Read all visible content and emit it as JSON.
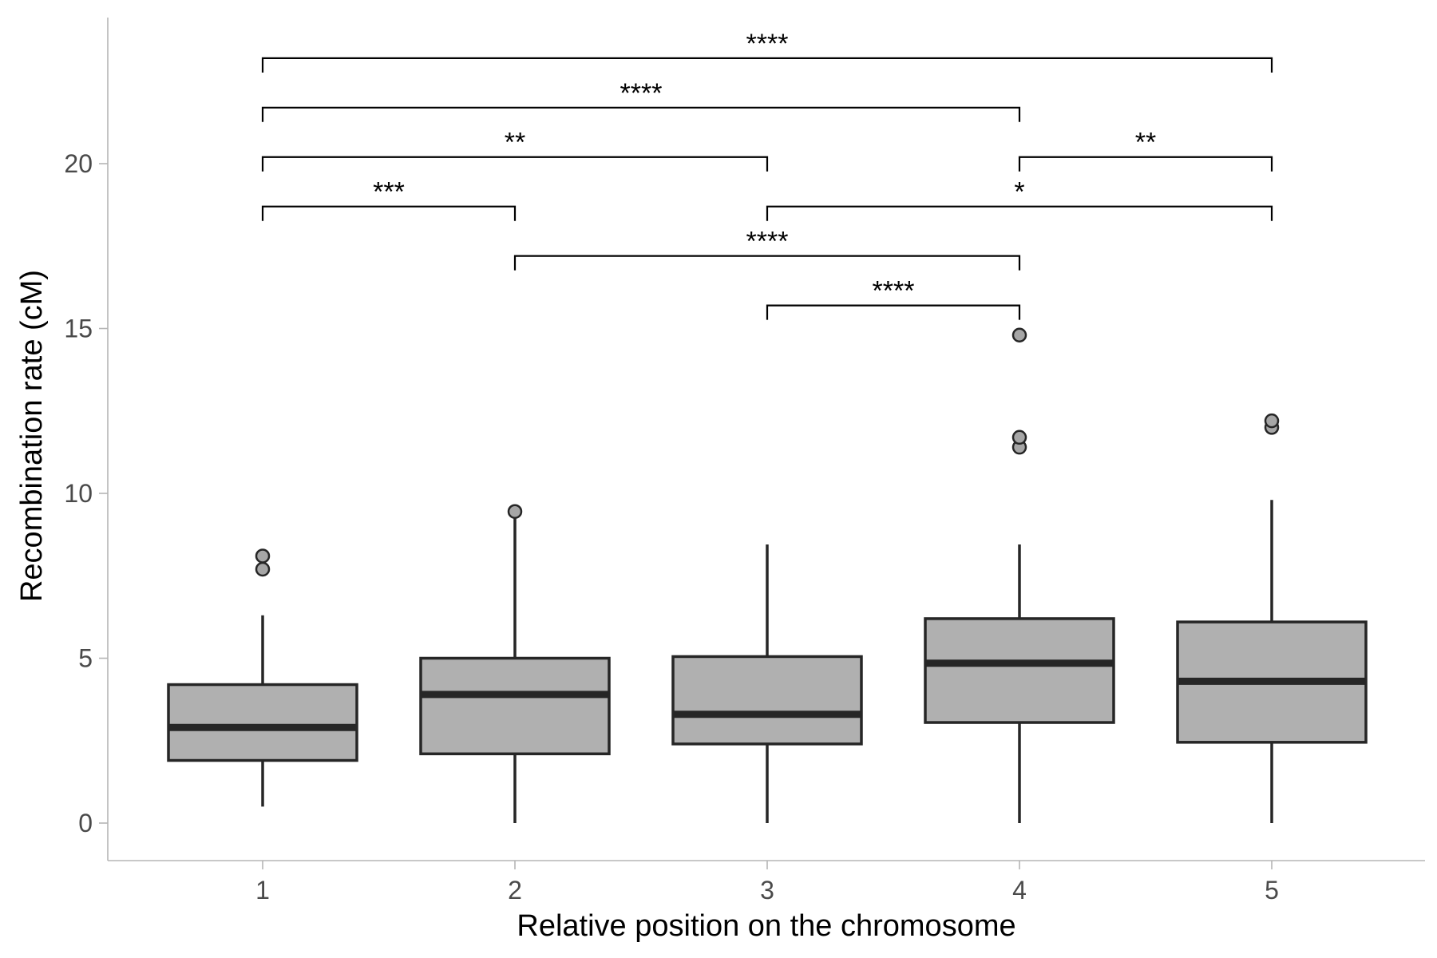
{
  "chart_data": {
    "type": "box",
    "title": "",
    "xlabel": "Relative position on the chromosome",
    "ylabel": "Recombination rate (cM)",
    "categories": [
      "1",
      "2",
      "3",
      "4",
      "5"
    ],
    "ylim": [
      -1.2,
      24
    ],
    "yticks": [
      0,
      5,
      10,
      15,
      20
    ],
    "grid": false,
    "legend": "none",
    "colors": {
      "box_fill": "#b0b0b0",
      "box_stroke": "#262626",
      "outlier_fill": "#a6a6a6"
    },
    "boxes": [
      {
        "category": "1",
        "whisker_low": 0.5,
        "q1": 1.9,
        "median": 2.9,
        "q3": 4.2,
        "whisker_high": 6.3,
        "outliers": [
          7.7,
          8.1
        ]
      },
      {
        "category": "2",
        "whisker_low": 0.0,
        "q1": 2.1,
        "median": 3.9,
        "q3": 5.0,
        "whisker_high": 9.4,
        "outliers": [
          9.45
        ]
      },
      {
        "category": "3",
        "whisker_low": 0.0,
        "q1": 2.4,
        "median": 3.3,
        "q3": 5.05,
        "whisker_high": 8.45,
        "outliers": []
      },
      {
        "category": "4",
        "whisker_low": 0.0,
        "q1": 3.05,
        "median": 4.85,
        "q3": 6.2,
        "whisker_high": 8.45,
        "outliers": [
          11.4,
          11.7,
          14.8
        ]
      },
      {
        "category": "5",
        "whisker_low": 0.0,
        "q1": 2.45,
        "median": 4.3,
        "q3": 6.1,
        "whisker_high": 9.8,
        "outliers": [
          12.0,
          12.2
        ]
      }
    ],
    "comparisons": [
      {
        "from": "1",
        "to": "5",
        "y": 23.2,
        "label": "****"
      },
      {
        "from": "1",
        "to": "4",
        "y": 21.7,
        "label": "****"
      },
      {
        "from": "1",
        "to": "3",
        "y": 20.2,
        "label": "**"
      },
      {
        "from": "4",
        "to": "5",
        "y": 20.2,
        "label": "**"
      },
      {
        "from": "1",
        "to": "2",
        "y": 18.7,
        "label": "***"
      },
      {
        "from": "3",
        "to": "5",
        "y": 18.7,
        "label": "*"
      },
      {
        "from": "2",
        "to": "4",
        "y": 17.2,
        "label": "****"
      },
      {
        "from": "3",
        "to": "4",
        "y": 15.7,
        "label": "****"
      }
    ]
  }
}
